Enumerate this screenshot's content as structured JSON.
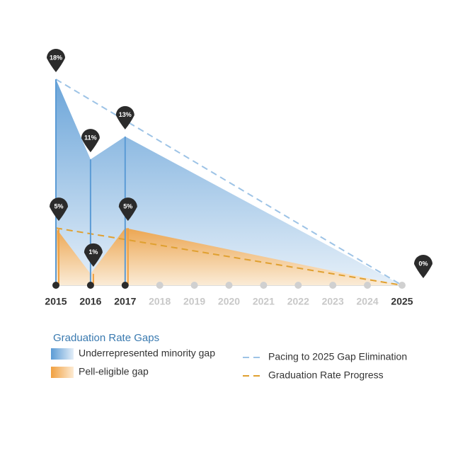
{
  "chart_data": {
    "type": "area",
    "xlim": [
      2015,
      2025
    ],
    "xticks": [
      2015,
      2016,
      2017,
      2018,
      2019,
      2020,
      2021,
      2022,
      2023,
      2024,
      2025
    ],
    "ylim": [
      0,
      18
    ],
    "legend_title": "Graduation Rate Gaps",
    "series": [
      {
        "name": "Underrepresented minority gap",
        "color": "#5b9bd5",
        "style": "area",
        "x": [
          2015,
          2016,
          2017,
          2025
        ],
        "values": [
          18,
          11,
          13,
          0
        ],
        "value_labels": [
          "18%",
          "11%",
          "13%",
          "0%"
        ]
      },
      {
        "name": "Pell-eligible gap",
        "color": "#f0a040",
        "style": "area",
        "x": [
          2015,
          2016,
          2017,
          2025
        ],
        "values": [
          5,
          1,
          5,
          0
        ],
        "value_labels": [
          "5%",
          "1%",
          "5%",
          null
        ]
      },
      {
        "name": "Pacing to 2025 Gap Elimination",
        "color": "#9dc3e6",
        "style": "dashed",
        "x": [
          2015,
          2025
        ],
        "values": [
          18,
          0
        ]
      },
      {
        "name": "Graduation Rate Progress",
        "color": "#e0a030",
        "style": "dashed",
        "x": [
          2015,
          2025
        ],
        "values": [
          5,
          0
        ]
      }
    ]
  }
}
